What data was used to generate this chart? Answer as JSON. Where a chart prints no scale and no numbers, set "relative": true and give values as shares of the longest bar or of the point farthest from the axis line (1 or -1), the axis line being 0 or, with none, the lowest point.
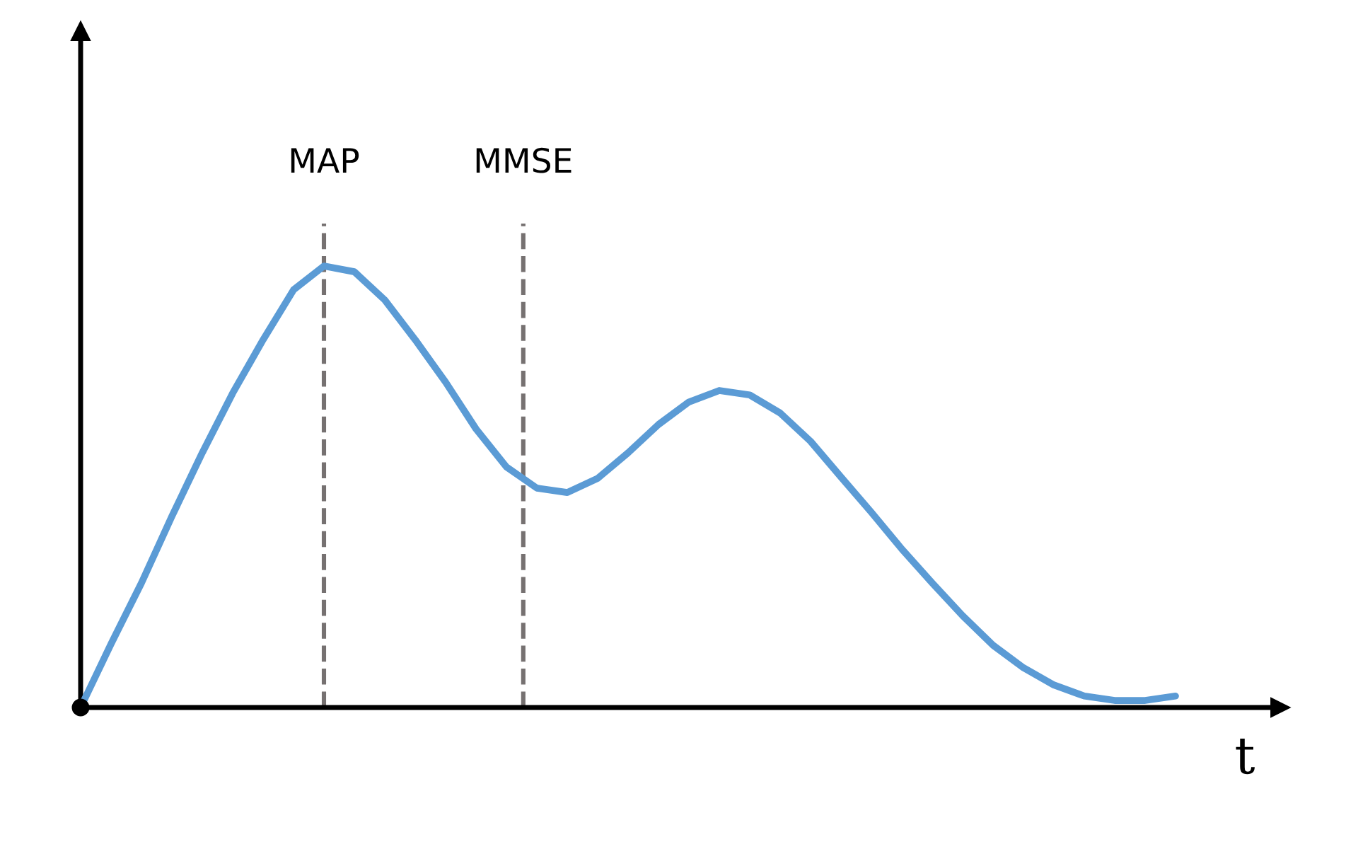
{
  "chart_data": {
    "type": "line",
    "relative": true,
    "xlabel": "t",
    "categories": [
      null,
      null,
      null,
      null,
      null,
      null,
      null,
      null,
      null,
      null,
      null,
      null,
      null,
      null,
      null,
      null,
      null,
      null,
      null,
      null,
      null,
      null,
      null,
      null,
      null,
      null,
      null,
      null,
      null,
      null,
      null,
      null,
      null,
      null,
      null,
      null,
      null
    ],
    "series": [
      {
        "color": "#5b9bd5",
        "values": [
          0,
          0.144,
          0.282,
          0.433,
          0.577,
          0.712,
          0.833,
          0.946,
          1.0,
          0.987,
          0.923,
          0.833,
          0.737,
          0.631,
          0.545,
          0.497,
          0.487,
          0.519,
          0.577,
          0.641,
          0.692,
          0.718,
          0.708,
          0.667,
          0.603,
          0.522,
          0.442,
          0.359,
          0.282,
          0.208,
          0.141,
          0.09,
          0.051,
          0.026,
          0.016,
          0.016,
          0.026
        ]
      }
    ],
    "annotations": [
      "MAP",
      "MMSE"
    ],
    "legend": false,
    "marker": "none",
    "line_style": "solid",
    "tick_labels": false
  }
}
